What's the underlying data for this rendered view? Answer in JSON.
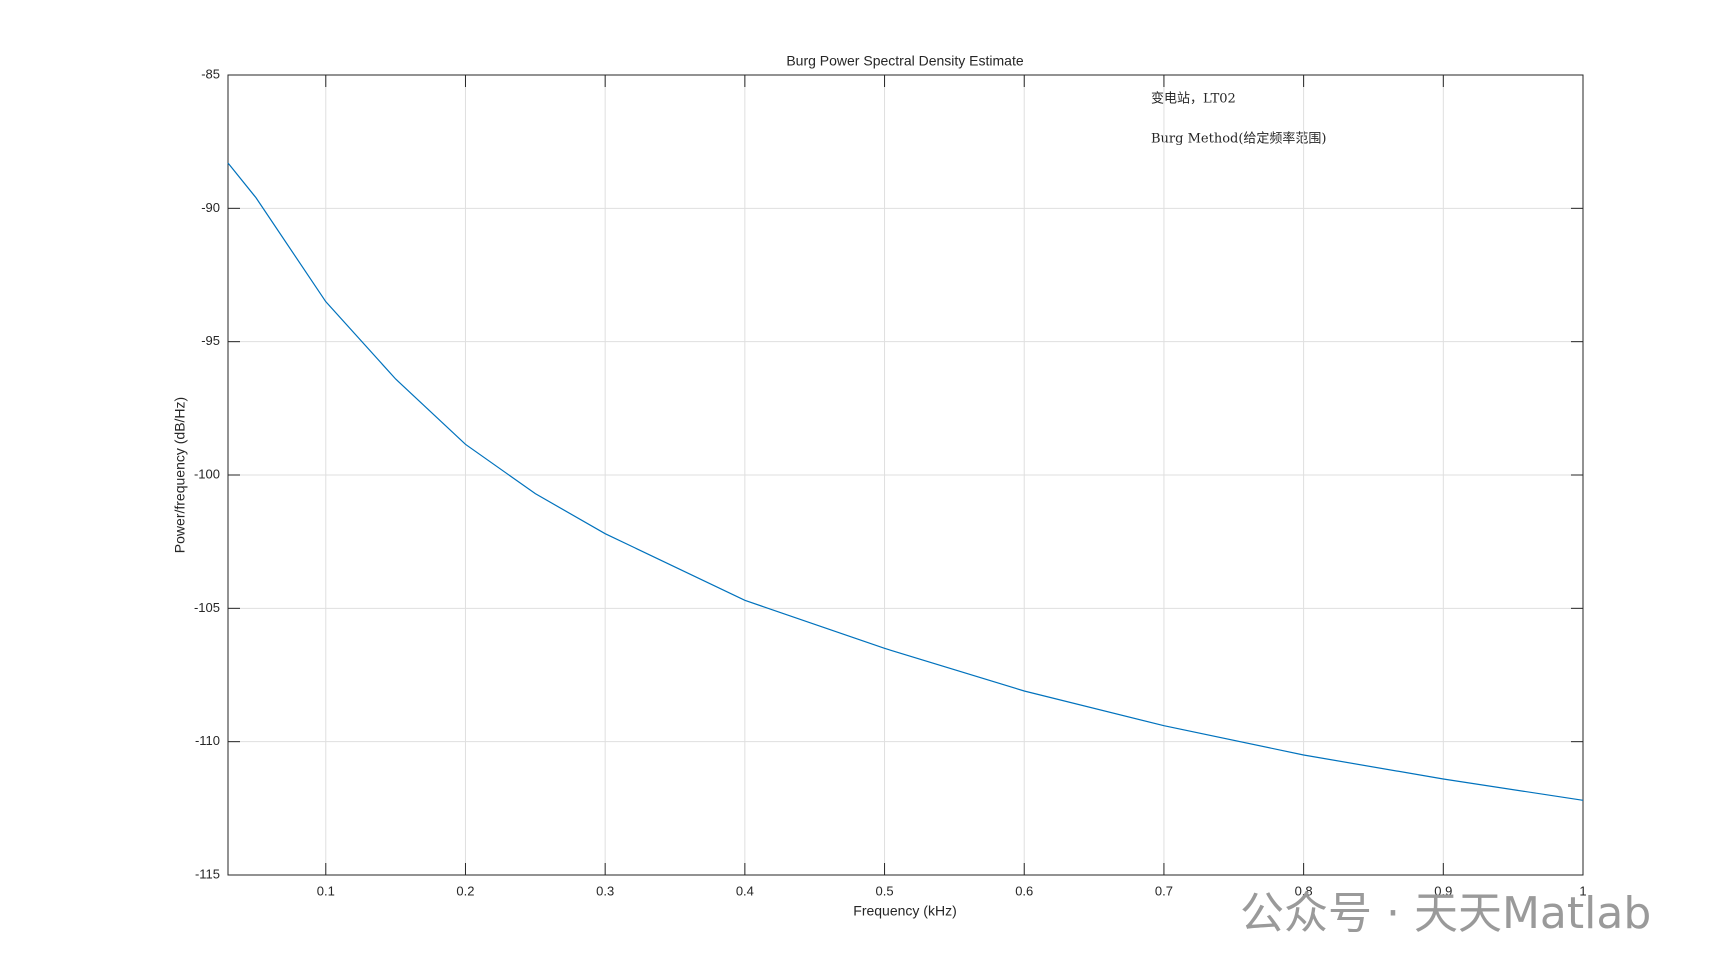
{
  "chart_data": {
    "type": "line",
    "title": "Burg Power Spectral Density Estimate",
    "xlabel": "Frequency (kHz)",
    "ylabel": "Power/frequency (dB/Hz)",
    "annotations": [
      "变电站，LT02",
      "Burg Method(给定频率范围)"
    ],
    "watermark": "公众号 · 天天Matlab",
    "x": [
      0.03,
      0.05,
      0.1,
      0.15,
      0.2,
      0.25,
      0.3,
      0.4,
      0.5,
      0.6,
      0.7,
      0.8,
      0.9,
      1
    ],
    "series": [
      {
        "color": "#0072bd",
        "values": [
          -88.3,
          -89.6,
          -93.5,
          -96.4,
          -98.85,
          -100.7,
          -102.2,
          -104.7,
          -106.5,
          -108.1,
          -109.4,
          -110.5,
          -111.4,
          -112.2
        ]
      }
    ],
    "xlim": [
      0.03,
      1
    ],
    "xticks": [
      0.1,
      0.2,
      0.3,
      0.4,
      0.5,
      0.6,
      0.7,
      0.8,
      0.9,
      1
    ],
    "ylim": [
      -115,
      -85
    ],
    "yticks": [
      -115,
      -110,
      -105,
      -100,
      -95,
      -90,
      -85
    ],
    "grid": true
  }
}
